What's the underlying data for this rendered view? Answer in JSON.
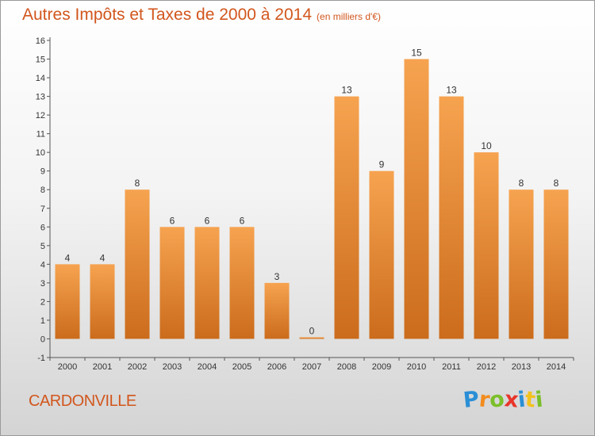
{
  "title": {
    "main": "Autres Impôts et Taxes de 2000 à 2014",
    "unit": "(en milliers d'€)"
  },
  "commune": "CARDONVILLE",
  "brand": {
    "letters": [
      "P",
      "r",
      "o",
      "x",
      "i",
      "t",
      "i"
    ],
    "colors": [
      "#2a8fd6",
      "#f28c1e",
      "#7bbf2a",
      "#e8352b",
      "#2a8fd6",
      "#f2c21e",
      "#7bbf2a"
    ]
  },
  "colors": {
    "title": "#d2561d",
    "bar_top": "#f6a350",
    "bar_bottom": "#cb6c1c",
    "axis": "#555555"
  },
  "chart_data": {
    "type": "bar",
    "categories": [
      "2000",
      "2001",
      "2002",
      "2003",
      "2004",
      "2005",
      "2006",
      "2007",
      "2008",
      "2009",
      "2010",
      "2011",
      "2012",
      "2013",
      "2014"
    ],
    "values": [
      4,
      4,
      8,
      6,
      6,
      6,
      3,
      0,
      13,
      9,
      15,
      13,
      10,
      8,
      8
    ],
    "yticks": [
      -1,
      0,
      1,
      2,
      3,
      4,
      5,
      6,
      7,
      8,
      9,
      10,
      11,
      12,
      13,
      14,
      15,
      16
    ],
    "ylim": [
      -1,
      16
    ],
    "grid": false,
    "data_labels": true
  }
}
